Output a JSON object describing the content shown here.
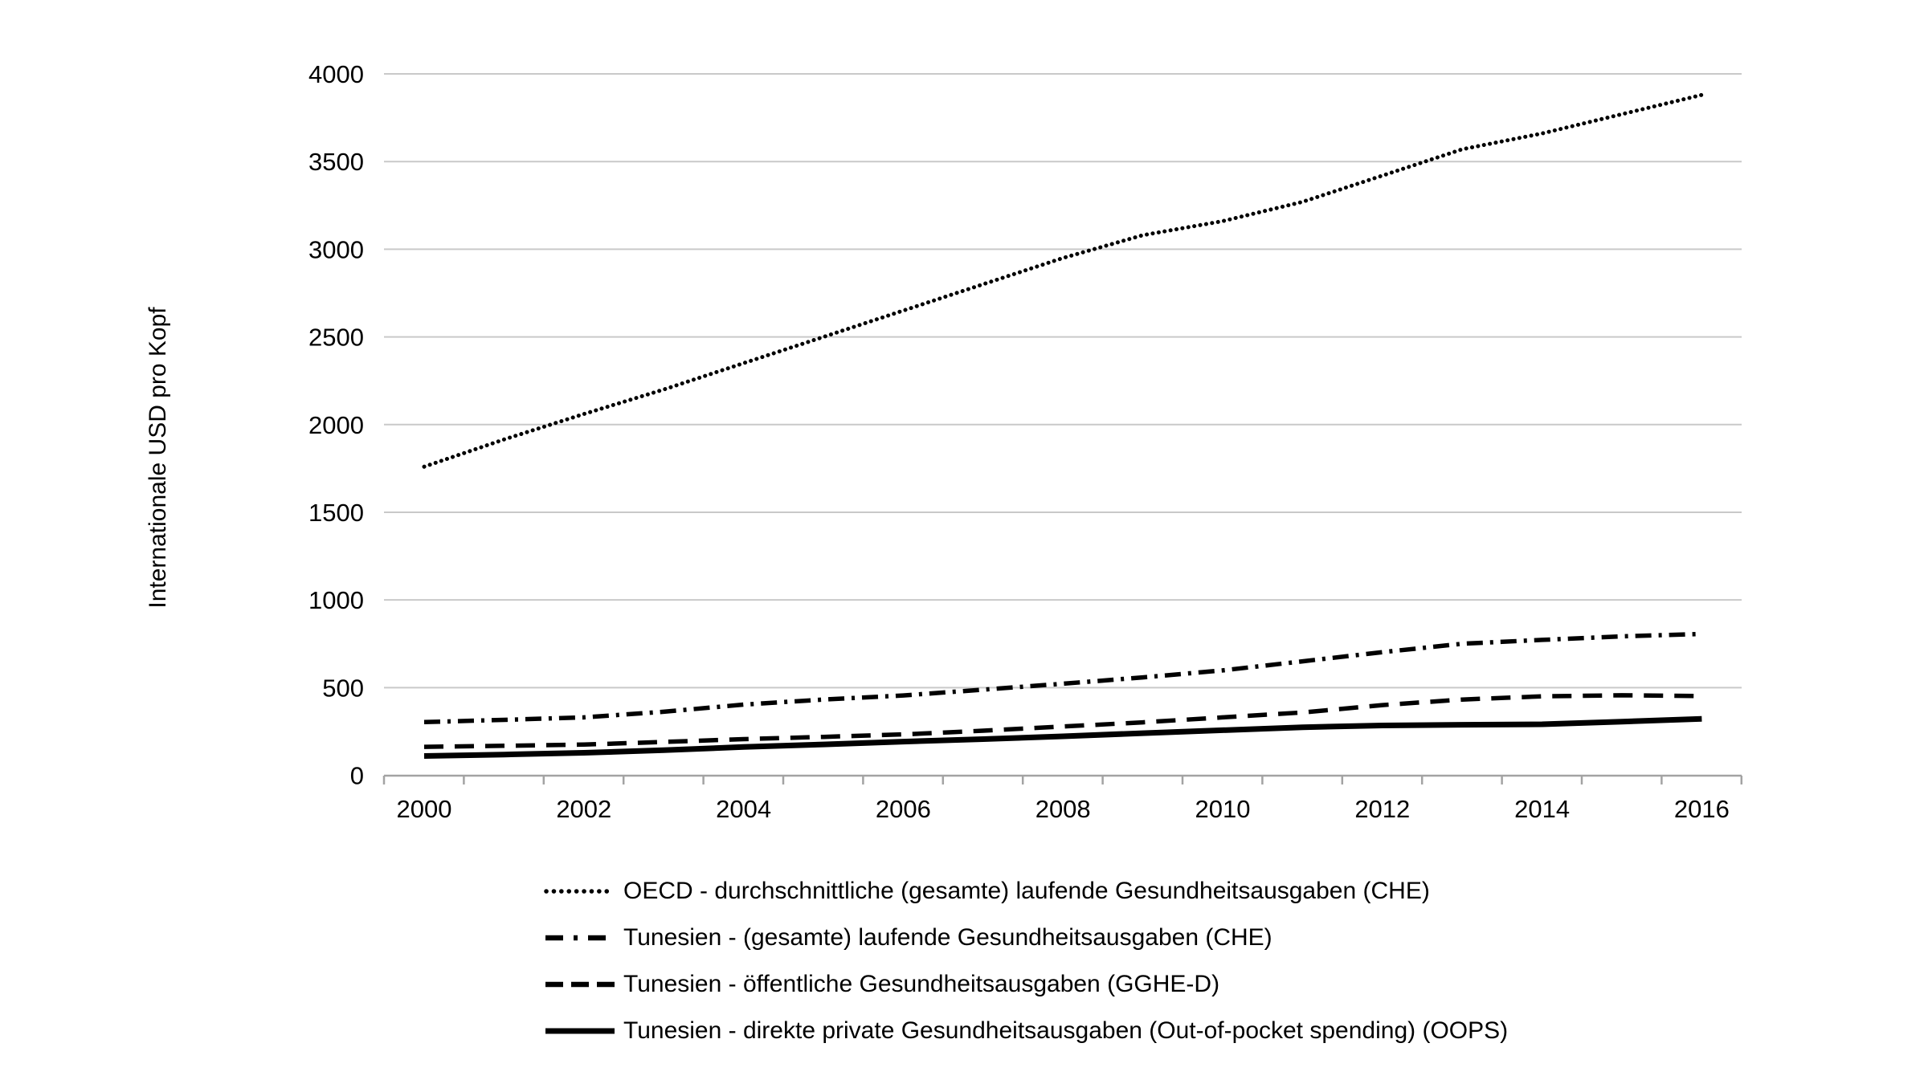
{
  "chart_data": {
    "type": "line",
    "title": "",
    "ylabel": "Internationale USD pro Kopf",
    "xlabel": "",
    "x": [
      2000,
      2001,
      2002,
      2003,
      2004,
      2005,
      2006,
      2007,
      2008,
      2009,
      2010,
      2011,
      2012,
      2013,
      2014,
      2015,
      2016
    ],
    "x_tick_labels": [
      "2000",
      "2002",
      "2004",
      "2006",
      "2008",
      "2010",
      "2012",
      "2014",
      "2016"
    ],
    "y_ticks": [
      0,
      500,
      1000,
      1500,
      2000,
      2500,
      3000,
      3500,
      4000
    ],
    "ylim": [
      0,
      4000
    ],
    "grid": "horizontal",
    "legend_position": "bottom",
    "series": [
      {
        "name": "oecd-che",
        "label": "OECD - durchschnittliche (gesamte) laufende Gesundheitsausgaben (CHE)",
        "style": "dotted",
        "color": "#000000",
        "values": [
          1760,
          1915,
          2060,
          2200,
          2350,
          2500,
          2650,
          2800,
          2950,
          3080,
          3160,
          3270,
          3420,
          3570,
          3660,
          3770,
          3880
        ]
      },
      {
        "name": "tunesien-che",
        "label": "Tunesien - (gesamte) laufende Gesundheitsausgaben (CHE)",
        "style": "dash-dot",
        "color": "#000000",
        "values": [
          303,
          316,
          330,
          362,
          403,
          432,
          455,
          488,
          522,
          558,
          598,
          650,
          702,
          750,
          772,
          792,
          806
        ]
      },
      {
        "name": "tunesien-gghe-d",
        "label": "Tunesien - öffentliche Gesundheitsausgaben (GGHE-D)",
        "style": "dashed",
        "color": "#000000",
        "values": [
          162,
          168,
          175,
          190,
          206,
          219,
          233,
          254,
          278,
          302,
          330,
          358,
          400,
          432,
          450,
          456,
          452
        ]
      },
      {
        "name": "tunesien-oops",
        "label": "Tunesien - direkte private Gesundheitsausgaben (Out-of-pocket spending) (OOPS)",
        "style": "solid",
        "color": "#000000",
        "values": [
          110,
          118,
          128,
          143,
          161,
          176,
          192,
          206,
          222,
          240,
          257,
          274,
          284,
          288,
          291,
          306,
          322
        ]
      }
    ],
    "colors": {
      "line": "#000000",
      "gridline": "#c9c9c9",
      "axis": "#a3a3a3",
      "text": "#000000",
      "background": "#ffffff"
    }
  }
}
